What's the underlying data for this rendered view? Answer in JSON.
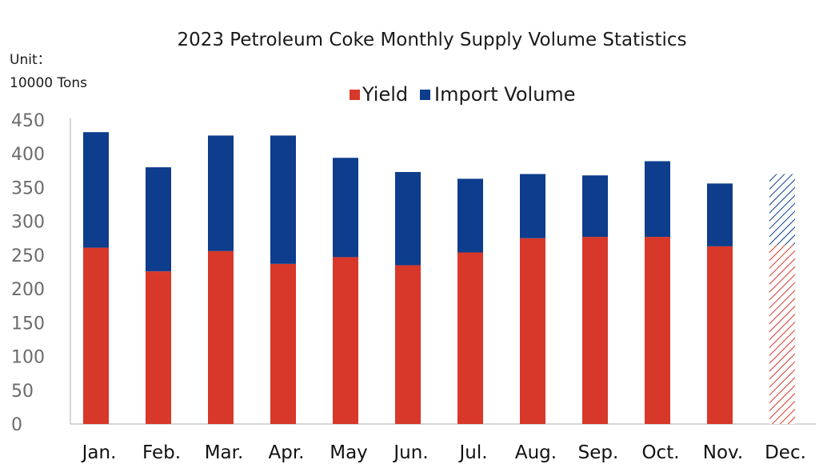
{
  "chart_data": {
    "type": "bar",
    "stacked": true,
    "title": "2023 Petroleum Coke Monthly Supply Volume Statistics",
    "unit_label_line1": "Unit：",
    "unit_label_line2": "10000 Tons",
    "categories": [
      "Jan.",
      "Feb.",
      "Mar.",
      "Apr.",
      "May",
      "Jun.",
      "Jul.",
      "Aug.",
      "Sep.",
      "Oct.",
      "Nov.",
      "Dec."
    ],
    "series": [
      {
        "name": "Yield",
        "color": "#d7382a",
        "values": [
          261,
          226,
          256,
          237,
          247,
          235,
          254,
          275,
          277,
          277,
          263,
          265
        ]
      },
      {
        "name": "Import Volume",
        "color": "#0d3d8c",
        "values": [
          171,
          154,
          171,
          190,
          147,
          138,
          109,
          95,
          91,
          112,
          93,
          105
        ]
      }
    ],
    "estimated_categories": [
      "Dec."
    ],
    "ylim": [
      0,
      450
    ],
    "yticks": [
      "0",
      "50",
      "100",
      "150",
      "200",
      "250",
      "300",
      "350",
      "400",
      "450"
    ],
    "legend_position": "top-right",
    "grid": false
  }
}
